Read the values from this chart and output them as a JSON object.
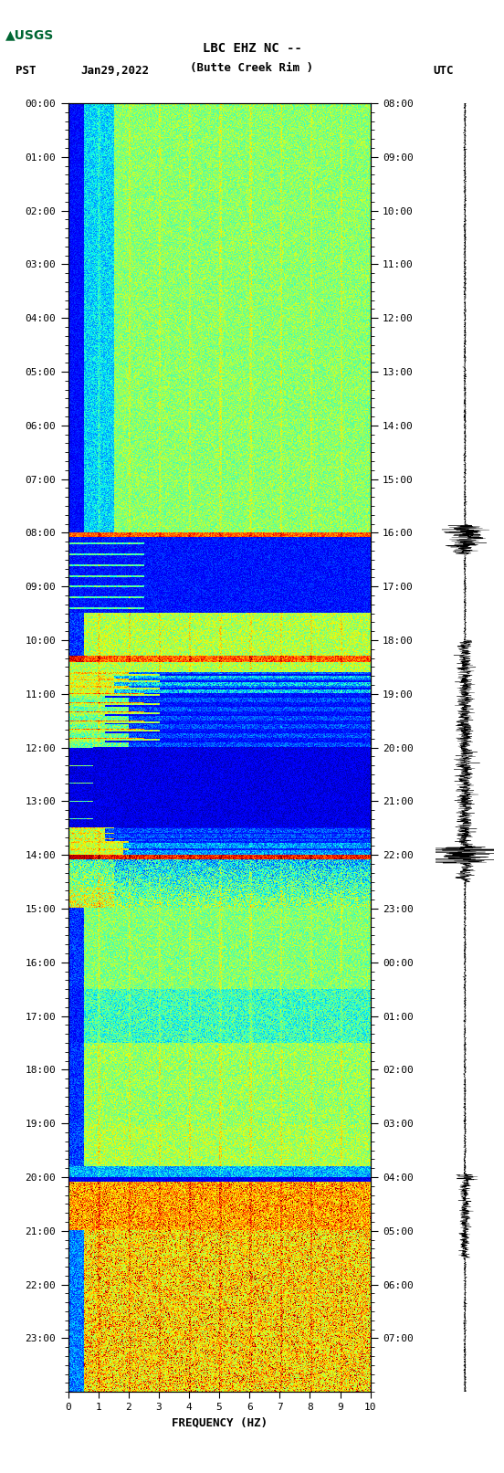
{
  "title_line1": "LBC EHZ NC --",
  "title_line2": "(Butte Creek Rim )",
  "date_label": "Jan29,2022",
  "left_tz": "PST",
  "right_tz": "UTC",
  "xlabel": "FREQUENCY (HZ)",
  "xlim": [
    0,
    10
  ],
  "xticks": [
    0,
    1,
    2,
    3,
    4,
    5,
    6,
    7,
    8,
    9,
    10
  ],
  "left_yticks_hours": [
    0,
    1,
    2,
    3,
    4,
    5,
    6,
    7,
    8,
    9,
    10,
    11,
    12,
    13,
    14,
    15,
    16,
    17,
    18,
    19,
    20,
    21,
    22,
    23
  ],
  "right_yticks_hours": [
    8,
    9,
    10,
    11,
    12,
    13,
    14,
    15,
    16,
    17,
    18,
    19,
    20,
    21,
    22,
    23,
    0,
    1,
    2,
    3,
    4,
    5,
    6,
    7
  ],
  "background_color": "#ffffff",
  "fig_width": 5.52,
  "fig_height": 16.13,
  "dpi": 100,
  "noise_seed": 42
}
